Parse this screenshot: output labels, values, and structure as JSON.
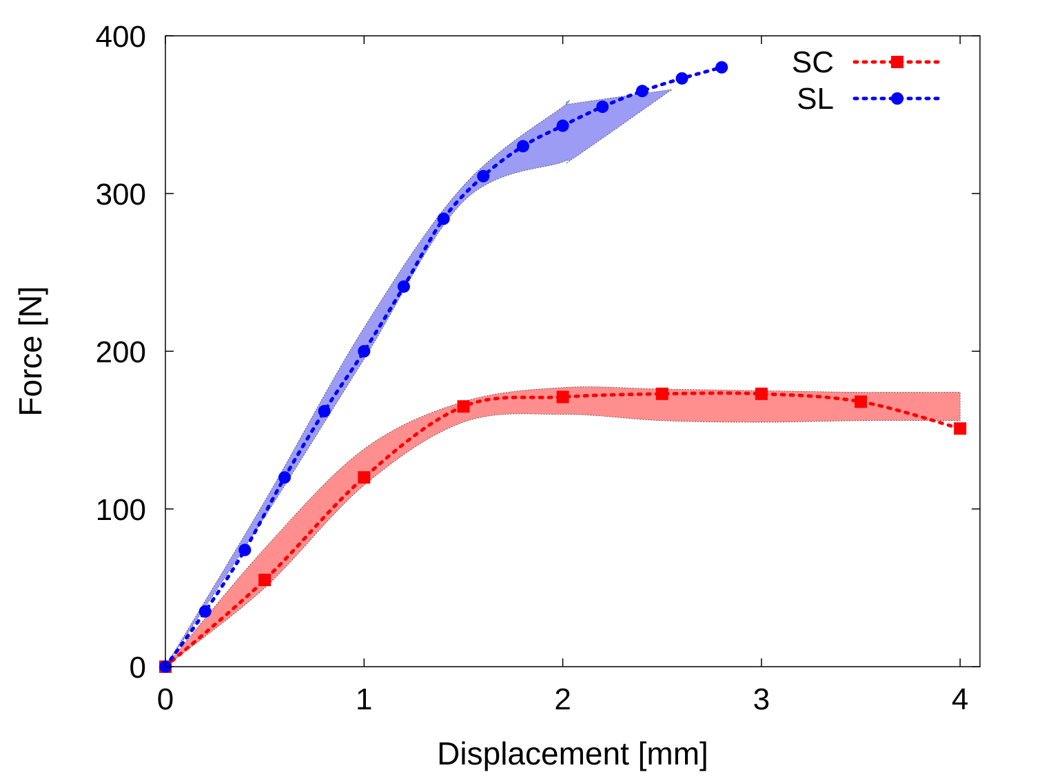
{
  "chart_data": {
    "type": "line",
    "title": "",
    "xlabel": "Displacement [mm]",
    "ylabel": "Force [N]",
    "xlim": [
      0,
      4.1
    ],
    "ylim": [
      0,
      400
    ],
    "xticks": [
      0,
      1,
      2,
      3,
      4
    ],
    "xtick_labels": [
      "0",
      "1",
      "2",
      "3",
      "4"
    ],
    "yticks": [
      0,
      100,
      200,
      300,
      400
    ],
    "ytick_labels": [
      "0",
      "100",
      "200",
      "300",
      "400"
    ],
    "grid": false,
    "legend_position": "top-right",
    "series": [
      {
        "name": "SC",
        "color": "#ff0000",
        "marker": "square",
        "line_style": "dotted",
        "x": [
          0,
          0.5,
          1.0,
          1.5,
          2.0,
          2.5,
          3.0,
          3.5,
          4.0
        ],
        "y": [
          0,
          55,
          120,
          165,
          171,
          173,
          173,
          168,
          151
        ],
        "band": {
          "color": "#ff6a6a",
          "x": [
            0,
            0.5,
            1.0,
            1.5,
            2.0,
            2.5,
            3.0,
            3.5,
            4.0
          ],
          "upper": [
            0,
            75,
            138,
            168,
            177,
            176,
            175,
            174,
            174
          ],
          "lower": [
            0,
            50,
            115,
            155,
            160,
            156,
            155,
            156,
            156
          ]
        }
      },
      {
        "name": "SL",
        "color": "#0000ff",
        "marker": "circle",
        "line_style": "dotted",
        "x": [
          0,
          0.2,
          0.4,
          0.6,
          0.8,
          1.0,
          1.2,
          1.4,
          1.6,
          1.8,
          2.0,
          2.2,
          2.4,
          2.6,
          2.8
        ],
        "y": [
          0,
          35,
          74,
          120,
          162,
          200,
          241,
          284,
          311,
          330,
          343,
          355,
          365,
          373,
          380
        ],
        "band": {
          "color": "#7b7bf0",
          "x": [
            0,
            0.5,
            1.0,
            1.5,
            2.0,
            2.05,
            2.55
          ],
          "upper": [
            0,
            105,
            215,
            305,
            355,
            357,
            366
          ],
          "lower": [
            0,
            95,
            195,
            295,
            320,
            322,
            366
          ]
        }
      }
    ]
  }
}
